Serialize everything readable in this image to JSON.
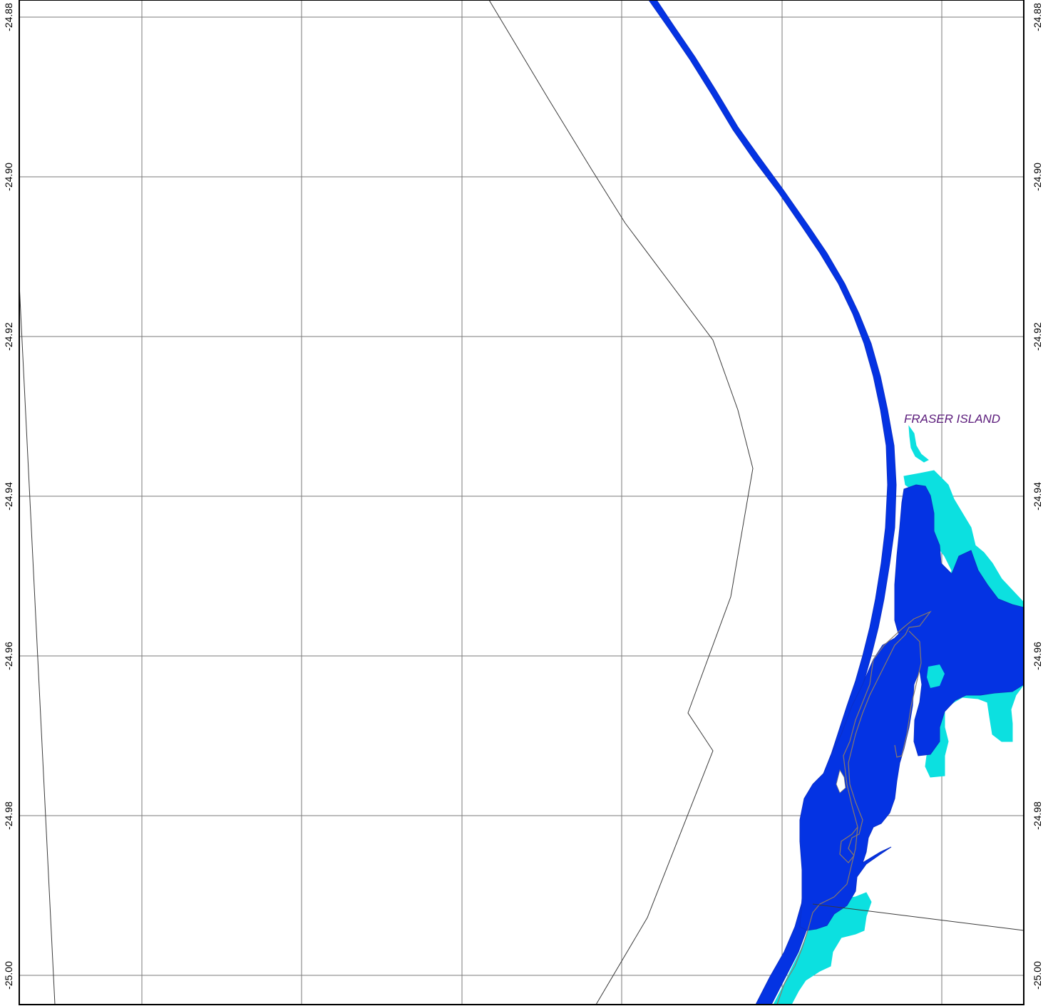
{
  "map": {
    "place_label": "FRASER ISLAND",
    "place_label_color": "#5a1a7a",
    "latitude_labels": [
      "-24.88",
      "-24.90",
      "-24.92",
      "-24.94",
      "-24.96",
      "-24.98",
      "-25.00"
    ],
    "colors": {
      "deep_water": "#0433e3",
      "shallow_water": "#0ce0e0",
      "grid": "#7a7a7a",
      "boundary_line": "#3a3a3a",
      "background": "#ffffff"
    }
  }
}
